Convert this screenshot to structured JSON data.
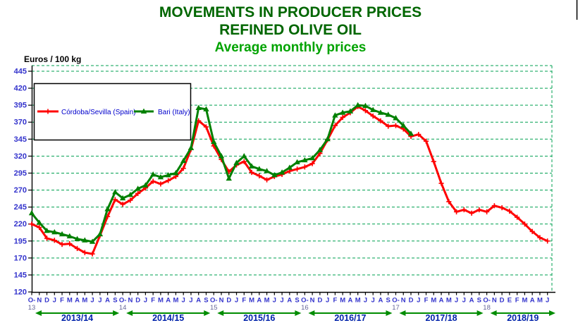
{
  "title": {
    "line1": "MOVEMENTS IN PRODUCER PRICES",
    "line2": "REFINED OLIVE OIL",
    "subtitle": "Average monthly prices"
  },
  "y_axis": {
    "unit_label": "Euros / 100 kg",
    "min": 120,
    "max": 445,
    "step": 25
  },
  "x_axis": {
    "year_labels": [
      {
        "label": "13",
        "index": 0
      },
      {
        "label": "14",
        "index": 12
      },
      {
        "label": "15",
        "index": 24
      },
      {
        "label": "16",
        "index": 36
      },
      {
        "label": "17",
        "index": 48
      },
      {
        "label": "18",
        "index": 60
      }
    ],
    "seasons": [
      {
        "label": "2013/14",
        "start": 0,
        "end": 12
      },
      {
        "label": "2014/15",
        "start": 12,
        "end": 24
      },
      {
        "label": "2015/16",
        "start": 24,
        "end": 36
      },
      {
        "label": "2016/17",
        "start": 36,
        "end": 48
      },
      {
        "label": "2017/18",
        "start": 48,
        "end": 60
      },
      {
        "label": "2018/19",
        "start": 60,
        "end": 68
      }
    ]
  },
  "legend": {
    "items": [
      {
        "label": "Córdoba/Sevilla (Spain)",
        "color": "#FF0000",
        "marker": "plus"
      },
      {
        "label": "Bari (Italy)",
        "color": "#008000",
        "marker": "triangle"
      }
    ]
  },
  "chart_data": {
    "type": "line",
    "categories": [
      "O-",
      "N",
      "D",
      "J",
      "F",
      "M",
      "A",
      "M",
      "J",
      "J",
      "A",
      "S",
      "O-",
      "N",
      "D",
      "J",
      "F",
      "M",
      "A",
      "M",
      "J",
      "J",
      "A",
      "S",
      "O-",
      "N",
      "D",
      "J",
      "F",
      "M",
      "A",
      "M",
      "J",
      "J",
      "A",
      "S",
      "O-",
      "N",
      "D",
      "J",
      "F",
      "M",
      "A",
      "M",
      "J",
      "J",
      "A",
      "S",
      "O-",
      "N",
      "D",
      "J",
      "F",
      "M",
      "A",
      "M",
      "J",
      "J",
      "A",
      "S",
      "O-",
      "N",
      "D",
      "E",
      "F",
      "M",
      "A",
      "M",
      "J"
    ],
    "ylabel": "Euros / 100 kg",
    "ylim": [
      120,
      445
    ],
    "grid": true,
    "legend_position": "top-left",
    "series": [
      {
        "name": "Córdoba/Sevilla (Spain)",
        "color": "#FF0000",
        "marker": "plus",
        "values": [
          220,
          215,
          199,
          196,
          190,
          191,
          184,
          178,
          176,
          203,
          231,
          256,
          249,
          255,
          265,
          273,
          283,
          279,
          284,
          290,
          302,
          330,
          372,
          363,
          335,
          315,
          297,
          307,
          312,
          296,
          291,
          285,
          290,
          293,
          298,
          301,
          304,
          309,
          324,
          344,
          365,
          377,
          384,
          393,
          387,
          379,
          372,
          364,
          365,
          360,
          349,
          352,
          342,
          312,
          280,
          253,
          238,
          241,
          236,
          241,
          238,
          247,
          244,
          239,
          230,
          220,
          209,
          200,
          195
        ]
      },
      {
        "name": "Bari (Italy)",
        "color": "#008000",
        "marker": "triangle",
        "values": [
          236,
          222,
          210,
          208,
          205,
          202,
          198,
          196,
          194,
          205,
          242,
          267,
          258,
          263,
          272,
          277,
          293,
          289,
          292,
          295,
          313,
          332,
          391,
          389,
          341,
          320,
          287,
          310,
          320,
          305,
          301,
          298,
          292,
          296,
          303,
          311,
          314,
          317,
          329,
          345,
          380,
          384,
          386,
          395,
          394,
          388,
          384,
          381,
          376,
          365,
          353,
          null,
          null,
          null,
          null,
          null,
          null,
          null,
          null,
          null,
          null,
          null,
          null,
          null,
          null,
          null,
          null,
          null,
          null
        ]
      }
    ]
  },
  "colors": {
    "title": "#006600",
    "subtitle": "#00A300",
    "grid": "#00A050",
    "axis": "#000000",
    "y_label": "#3333CC",
    "month_label": "#3333CC",
    "year_label": "#666699",
    "season_label": "#0022AA",
    "legend_text": "#0000CC",
    "arrow": "#008C00"
  }
}
